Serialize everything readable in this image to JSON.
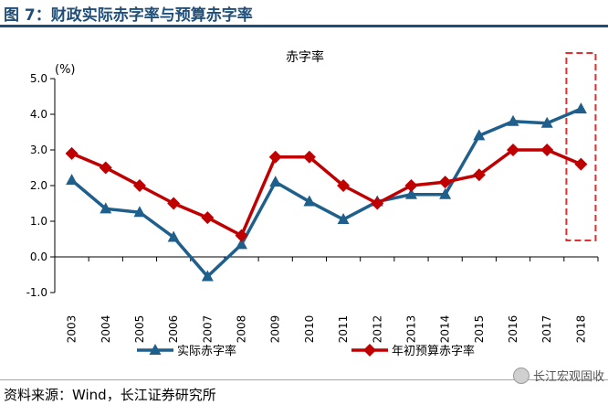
{
  "figure": {
    "title": "图 7：财政实际赤字率与预算赤字率",
    "source": "资料来源：Wind，长江证券研究所",
    "watermark": "长江宏观固收"
  },
  "chart_data": {
    "type": "line",
    "title": "赤字率",
    "ylabel": "(%)",
    "xlabel": "",
    "categories": [
      "2003",
      "2004",
      "2005",
      "2006",
      "2007",
      "2008",
      "2009",
      "2010",
      "2011",
      "2012",
      "2013",
      "2014",
      "2015",
      "2016",
      "2017",
      "2018"
    ],
    "ylim": [
      -1.0,
      5.0
    ],
    "yticks": [
      "5.0",
      "4.0",
      "3.0",
      "2.0",
      "1.0",
      "0.0",
      "-1.0"
    ],
    "ytick_values": [
      5,
      4,
      3,
      2,
      1,
      0,
      -1
    ],
    "legend_position": "bottom",
    "grid": false,
    "highlight": {
      "category": "2018",
      "style": "red dashed box"
    },
    "series": [
      {
        "name": "实际赤字率",
        "color": "#1f5f8b",
        "marker": "triangle",
        "values": [
          2.15,
          1.35,
          1.25,
          0.55,
          -0.55,
          0.35,
          2.1,
          1.55,
          1.05,
          1.55,
          1.75,
          1.75,
          3.4,
          3.8,
          3.75,
          4.15
        ]
      },
      {
        "name": "年初预算赤字率",
        "color": "#c00000",
        "marker": "diamond",
        "values": [
          2.9,
          2.5,
          2.0,
          1.5,
          1.1,
          0.6,
          2.8,
          2.8,
          2.0,
          1.5,
          2.0,
          2.1,
          2.3,
          3.0,
          3.0,
          2.6
        ]
      }
    ]
  }
}
